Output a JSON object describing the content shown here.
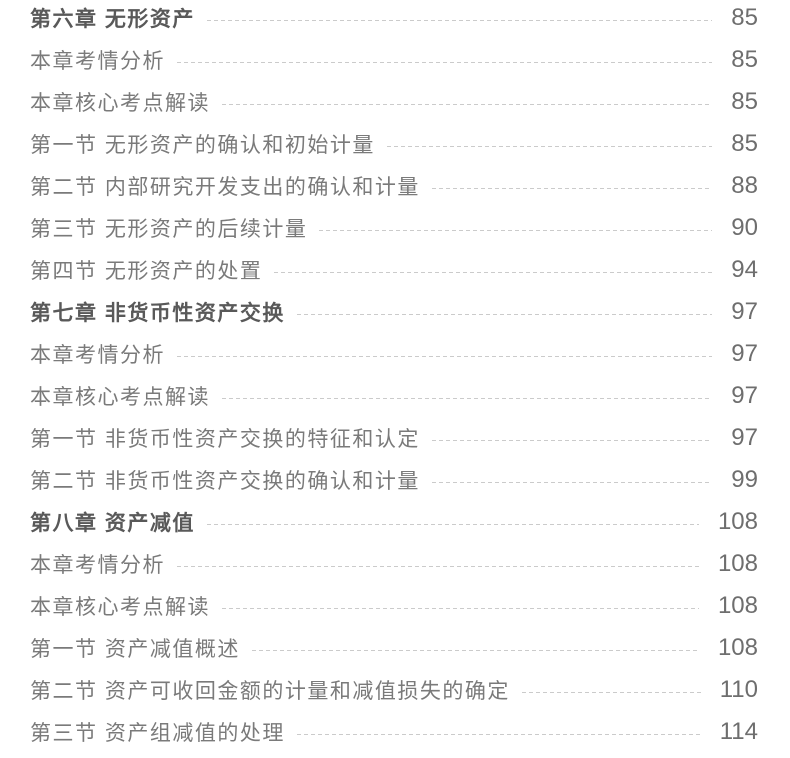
{
  "colors": {
    "background": "#ffffff",
    "chapter_text": "#595959",
    "item_text": "#7a7a7a",
    "page_number": "#6e6e6e",
    "leader_dash": "#cbcbcb"
  },
  "toc": {
    "entries": [
      {
        "label": "第六章 无形资产",
        "page": "85",
        "level": "chapter"
      },
      {
        "label": "本章考情分析",
        "page": "85",
        "level": "section"
      },
      {
        "label": "本章核心考点解读",
        "page": "85",
        "level": "section"
      },
      {
        "label": "第一节 无形资产的确认和初始计量",
        "page": "85",
        "level": "section"
      },
      {
        "label": "第二节 内部研究开发支出的确认和计量",
        "page": "88",
        "level": "section"
      },
      {
        "label": "第三节 无形资产的后续计量",
        "page": "90",
        "level": "section"
      },
      {
        "label": "第四节 无形资产的处置",
        "page": "94",
        "level": "section"
      },
      {
        "label": "第七章 非货币性资产交换",
        "page": "97",
        "level": "chapter"
      },
      {
        "label": "本章考情分析",
        "page": "97",
        "level": "section"
      },
      {
        "label": "本章核心考点解读",
        "page": "97",
        "level": "section"
      },
      {
        "label": "第一节 非货币性资产交换的特征和认定",
        "page": "97",
        "level": "section"
      },
      {
        "label": "第二节 非货币性资产交换的确认和计量",
        "page": "99",
        "level": "section"
      },
      {
        "label": "第八章 资产减值",
        "page": "108",
        "level": "chapter"
      },
      {
        "label": "本章考情分析",
        "page": "108",
        "level": "section"
      },
      {
        "label": "本章核心考点解读",
        "page": "108",
        "level": "section"
      },
      {
        "label": "第一节 资产减值概述",
        "page": "108",
        "level": "section"
      },
      {
        "label": "第二节 资产可收回金额的计量和减值损失的确定",
        "page": "110",
        "level": "section"
      },
      {
        "label": "第三节 资产组减值的处理",
        "page": "114",
        "level": "section"
      }
    ]
  }
}
